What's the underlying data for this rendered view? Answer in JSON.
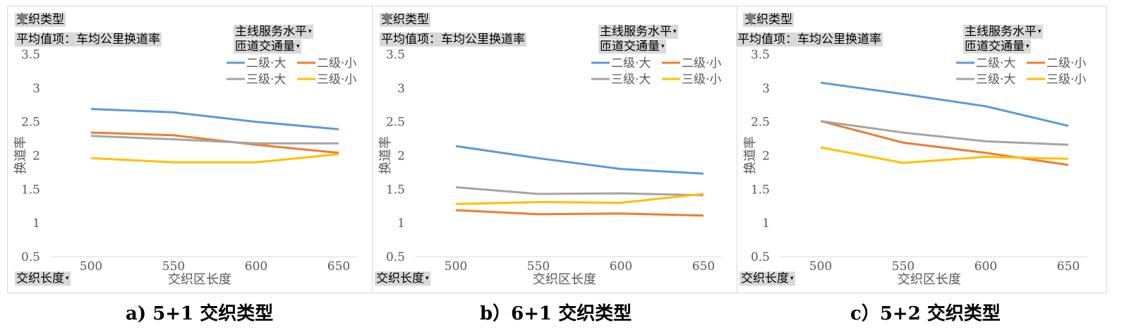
{
  "colors": {
    "二级·大": "#5b9bd5",
    "二级·小": "#ed7d31",
    "三级·大": "#a5a5a5",
    "三级·小": "#ffc000"
  },
  "pivot": {
    "filter_label": "交织类型",
    "value_label": "平均值项：车均公里换道率",
    "legend_field1": "主线服务水平",
    "legend_field2": "匝道交通量",
    "axis_field": "交织长度"
  },
  "chart_data": [
    {
      "type": "line",
      "caption": "a) 5+1 交织类型",
      "xlabel": "交织区长度",
      "ylabel": "换道率",
      "categories": [
        "500",
        "550",
        "600",
        "650"
      ],
      "ylim": [
        0.5,
        3.5
      ],
      "yticks": [
        "0.5",
        "1",
        "1.5",
        "2",
        "2.5",
        "3",
        "3.5"
      ],
      "grid": false,
      "legend_position": "top-right",
      "series": [
        {
          "name": "二级·大",
          "values": [
            2.69,
            2.64,
            2.5,
            2.39
          ]
        },
        {
          "name": "二级·小",
          "values": [
            2.34,
            2.3,
            2.16,
            2.04
          ]
        },
        {
          "name": "三级·大",
          "values": [
            2.29,
            2.24,
            2.18,
            2.18
          ]
        },
        {
          "name": "三级·小",
          "values": [
            1.96,
            1.9,
            1.9,
            2.02
          ]
        }
      ]
    },
    {
      "type": "line",
      "caption": "b）6+1 交织类型",
      "xlabel": "交织区长度",
      "ylabel": "换道率",
      "categories": [
        "500",
        "550",
        "600",
        "650"
      ],
      "ylim": [
        0.5,
        3.5
      ],
      "yticks": [
        "0.5",
        "1",
        "1.5",
        "2",
        "2.5",
        "3",
        "3.5"
      ],
      "grid": false,
      "legend_position": "top-right",
      "series": [
        {
          "name": "二级·大",
          "values": [
            2.14,
            1.96,
            1.8,
            1.73
          ]
        },
        {
          "name": "二级·小",
          "values": [
            1.19,
            1.13,
            1.14,
            1.11
          ]
        },
        {
          "name": "三级·大",
          "values": [
            1.53,
            1.43,
            1.44,
            1.41
          ]
        },
        {
          "name": "三级·小",
          "values": [
            1.28,
            1.31,
            1.3,
            1.43
          ]
        }
      ]
    },
    {
      "type": "line",
      "caption": "c）5+2 交织类型",
      "xlabel": "交织区长度",
      "ylabel": "换道率",
      "categories": [
        "500",
        "550",
        "600",
        "650"
      ],
      "ylim": [
        0.5,
        3.5
      ],
      "yticks": [
        "0.5",
        "1",
        "1.5",
        "2",
        "2.5",
        "3",
        "3.5"
      ],
      "grid": false,
      "legend_position": "top-right",
      "series": [
        {
          "name": "二级·大",
          "values": [
            3.08,
            2.91,
            2.73,
            2.44
          ]
        },
        {
          "name": "二级·小",
          "values": [
            2.51,
            2.19,
            2.04,
            1.86
          ]
        },
        {
          "name": "三级·大",
          "values": [
            2.51,
            2.34,
            2.21,
            2.16
          ]
        },
        {
          "name": "三级·小",
          "values": [
            2.12,
            1.89,
            1.98,
            1.95
          ]
        }
      ]
    }
  ]
}
